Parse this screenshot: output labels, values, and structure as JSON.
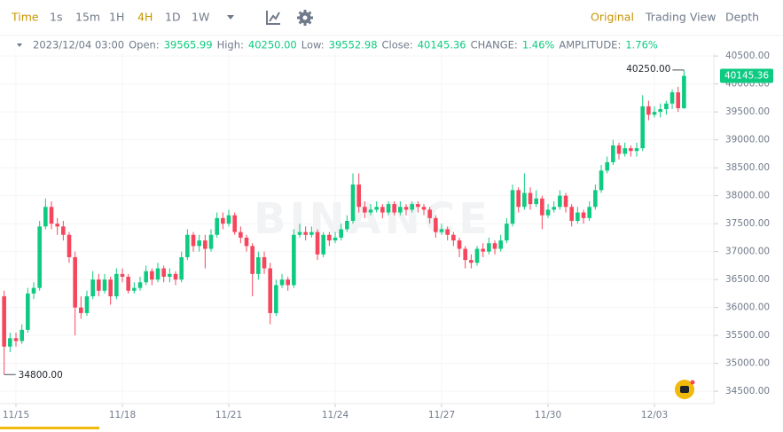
{
  "toolbar": {
    "intervals": [
      "Time",
      "1s",
      "15m",
      "1H",
      "4H",
      "1D",
      "1W"
    ],
    "views": [
      "Original",
      "Trading View",
      "Depth"
    ]
  },
  "info": {
    "time": "2023/12/04 03:00",
    "fields": [
      {
        "label": "Open:",
        "value": "39565.99"
      },
      {
        "label": "High:",
        "value": "40250.00"
      },
      {
        "label": "Low:",
        "value": "39552.98"
      },
      {
        "label": "Close:",
        "value": "40145.36"
      },
      {
        "label": "CHANGE:",
        "value": "1.46%"
      },
      {
        "label": "AMPLITUDE:",
        "value": "1.76%"
      }
    ]
  },
  "chart_data": {
    "type": "candlestick",
    "watermark": "BINANCE",
    "up_color": "#0ecb81",
    "down_color": "#f6465d",
    "grid": true,
    "categories": [
      null,
      null,
      "11/15",
      null,
      null,
      null,
      null,
      null,
      null,
      null,
      null,
      null,
      null,
      null,
      null,
      null,
      null,
      null,
      null,
      null,
      "11/18",
      null,
      null,
      null,
      null,
      null,
      null,
      null,
      null,
      null,
      null,
      null,
      null,
      null,
      null,
      null,
      null,
      null,
      "11/21",
      null,
      null,
      null,
      null,
      null,
      null,
      null,
      null,
      null,
      null,
      null,
      null,
      null,
      null,
      null,
      null,
      null,
      "11/24",
      null,
      null,
      null,
      null,
      null,
      null,
      null,
      null,
      null,
      null,
      null,
      null,
      null,
      null,
      null,
      null,
      null,
      "11/27",
      null,
      null,
      null,
      null,
      null,
      null,
      null,
      null,
      null,
      null,
      null,
      null,
      null,
      null,
      null,
      null,
      null,
      "11/30",
      null,
      null,
      null,
      null,
      null,
      null,
      null,
      null,
      null,
      null,
      null,
      null,
      null,
      null,
      null,
      null,
      null,
      "12/03",
      null,
      null,
      null,
      null,
      null
    ],
    "open": [
      36200,
      35300,
      35450,
      35400,
      35600,
      36250,
      36350,
      37450,
      37800,
      37500,
      37450,
      37300,
      36900,
      36000,
      35900,
      36200,
      36500,
      36300,
      36500,
      36200,
      36600,
      36550,
      36300,
      36350,
      36450,
      36650,
      36500,
      36700,
      36550,
      36600,
      36500,
      36900,
      37300,
      37100,
      37200,
      37050,
      37300,
      37600,
      37500,
      37650,
      37350,
      37250,
      37100,
      36600,
      36900,
      36700,
      35900,
      36400,
      36500,
      36400,
      37300,
      37350,
      37300,
      37350,
      36950,
      37300,
      37200,
      37250,
      37400,
      37550,
      38200,
      37800,
      37700,
      37750,
      37800,
      37700,
      37850,
      37700,
      37800,
      37750,
      37850,
      37800,
      37750,
      37600,
      37350,
      37400,
      37300,
      37200,
      37050,
      36850,
      36800,
      37050,
      37000,
      37150,
      37050,
      37200,
      37500,
      38100,
      37800,
      38050,
      37850,
      37950,
      37650,
      37750,
      37800,
      38000,
      37800,
      37550,
      37700,
      37600,
      37800,
      38100,
      38450,
      38600,
      38900,
      38750,
      38850,
      38800,
      38850,
      39600,
      39450,
      39500,
      39550,
      39650,
      39850,
      39565.99
    ],
    "high": [
      36300,
      35550,
      35550,
      35700,
      36350,
      36450,
      37550,
      37950,
      37900,
      37600,
      37550,
      37350,
      37000,
      36200,
      36300,
      36650,
      36600,
      36600,
      36550,
      36700,
      36700,
      36600,
      36450,
      36550,
      36750,
      36700,
      36800,
      36750,
      36700,
      36650,
      37000,
      37400,
      37350,
      37300,
      37300,
      37400,
      37700,
      37700,
      37750,
      37700,
      37450,
      37300,
      37150,
      37000,
      37000,
      36800,
      36500,
      36600,
      36550,
      37400,
      37500,
      37450,
      37450,
      37400,
      37350,
      37350,
      37350,
      37500,
      37650,
      38400,
      38400,
      37900,
      37850,
      37900,
      37850,
      37900,
      37900,
      37900,
      37850,
      37900,
      37900,
      37850,
      37800,
      37650,
      37500,
      37450,
      37350,
      37250,
      37100,
      36950,
      37100,
      37150,
      37250,
      37200,
      37300,
      37600,
      38200,
      38150,
      38400,
      38150,
      38100,
      38000,
      37850,
      37900,
      38100,
      38050,
      37850,
      37800,
      37750,
      37900,
      38200,
      38550,
      38700,
      39000,
      38950,
      38950,
      38900,
      38950,
      39800,
      39700,
      39600,
      39650,
      39700,
      39900,
      39950,
      40250
    ],
    "low": [
      34800,
      35200,
      35300,
      35350,
      35550,
      36150,
      36300,
      37400,
      37400,
      37300,
      37200,
      36800,
      35500,
      35800,
      35850,
      36150,
      36200,
      36250,
      36050,
      36150,
      36450,
      36250,
      36250,
      36300,
      36400,
      36400,
      36450,
      36450,
      36450,
      36400,
      36450,
      36850,
      37000,
      37000,
      36700,
      37000,
      37250,
      37400,
      37450,
      37300,
      37150,
      37000,
      36200,
      36500,
      36600,
      35700,
      35850,
      36350,
      36300,
      36350,
      37250,
      37200,
      37250,
      36850,
      36900,
      37100,
      37150,
      37200,
      37350,
      37500,
      37700,
      37600,
      37650,
      37700,
      37600,
      37650,
      37650,
      37650,
      37650,
      37700,
      37700,
      37650,
      37500,
      37250,
      37300,
      37200,
      37100,
      36900,
      36700,
      36700,
      36750,
      36900,
      36950,
      36950,
      37000,
      37150,
      37450,
      37700,
      37750,
      37750,
      37800,
      37400,
      37600,
      37700,
      37750,
      37700,
      37450,
      37500,
      37500,
      37550,
      37750,
      38050,
      38400,
      38550,
      38650,
      38700,
      38700,
      38700,
      38800,
      39350,
      39400,
      39400,
      39450,
      39550,
      39500,
      39552.98
    ],
    "close": [
      35300,
      35450,
      35400,
      35600,
      36250,
      36350,
      37450,
      37800,
      37500,
      37450,
      37300,
      36900,
      36000,
      35900,
      36200,
      36500,
      36300,
      36500,
      36200,
      36600,
      36550,
      36300,
      36350,
      36450,
      36650,
      36500,
      36700,
      36550,
      36600,
      36500,
      36900,
      37300,
      37100,
      37200,
      37050,
      37300,
      37600,
      37500,
      37650,
      37350,
      37250,
      37100,
      36600,
      36900,
      36700,
      35900,
      36400,
      36500,
      36400,
      37300,
      37350,
      37300,
      37350,
      36950,
      37300,
      37200,
      37250,
      37400,
      37550,
      38200,
      37800,
      37700,
      37750,
      37800,
      37700,
      37850,
      37700,
      37800,
      37750,
      37850,
      37800,
      37750,
      37600,
      37350,
      37400,
      37300,
      37200,
      37050,
      36850,
      36800,
      37050,
      37000,
      37150,
      37050,
      37200,
      37500,
      38100,
      37800,
      38050,
      37850,
      37950,
      37650,
      37750,
      37800,
      38000,
      37800,
      37550,
      37700,
      37600,
      37800,
      38100,
      38450,
      38600,
      38900,
      38750,
      38850,
      38800,
      38850,
      39600,
      39450,
      39500,
      39550,
      39650,
      39850,
      39565.99,
      40145.36
    ],
    "ylim": [
      34280,
      40550
    ],
    "yticks": [
      {
        "value": 40500,
        "label": "40500.00"
      },
      {
        "value": 40000,
        "label": "40000.00"
      },
      {
        "value": 39500,
        "label": "39500.00"
      },
      {
        "value": 39000,
        "label": "39000.00"
      },
      {
        "value": 38500,
        "label": "38500.00"
      },
      {
        "value": 38000,
        "label": "38000.00"
      },
      {
        "value": 37500,
        "label": "37500.00"
      },
      {
        "value": 37000,
        "label": "37000.00"
      },
      {
        "value": 36500,
        "label": "36500.00"
      },
      {
        "value": 36000,
        "label": "36000.00"
      },
      {
        "value": 35500,
        "label": "35500.00"
      },
      {
        "value": 35000,
        "label": "35000.00"
      },
      {
        "value": 34500,
        "label": "34500.00"
      }
    ],
    "high_marker": {
      "value": 40250,
      "label": "40250.00"
    },
    "low_marker": {
      "value": 34800,
      "label": "34800.00"
    },
    "last_price": 40145.36
  }
}
